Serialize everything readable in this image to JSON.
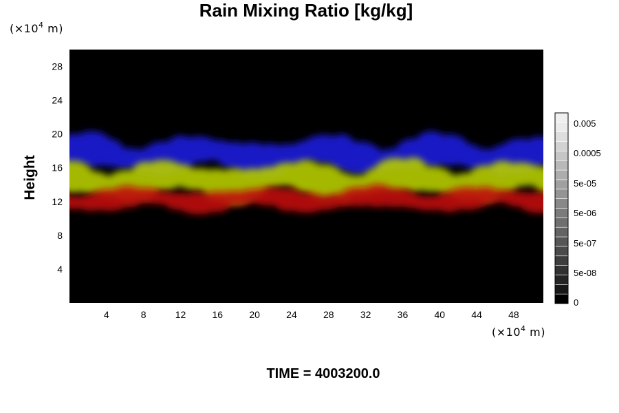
{
  "chart_data": {
    "type": "heatmap",
    "title": "Rain Mixing Ratio [kg/kg]",
    "ylabel": "Height",
    "x_unit": {
      "prefix": "(×10",
      "exp": "4",
      "suffix": " m)"
    },
    "y_unit": {
      "prefix": "(×10",
      "exp": "4",
      "suffix": " m)"
    },
    "xlim": [
      0,
      51.2
    ],
    "ylim": [
      0,
      30
    ],
    "xticks": [
      4,
      8,
      12,
      16,
      20,
      24,
      28,
      32,
      36,
      40,
      44,
      48
    ],
    "yticks": [
      4,
      8,
      12,
      16,
      20,
      24,
      28
    ],
    "colorbar": {
      "levels": 20,
      "labels": [
        "0",
        "5e-08",
        "5e-07",
        "5e-06",
        "5e-05",
        "0.0005",
        "0.005"
      ],
      "colors": [
        "#000000",
        "#ffffff"
      ]
    },
    "layers": [
      {
        "color": "#1a1adc",
        "y_range": [
          15.5,
          19.5
        ]
      },
      {
        "color": "#b6cc00",
        "y_range": [
          12.5,
          16.5
        ]
      },
      {
        "color": "#c01010",
        "y_range": [
          11,
          13.5
        ]
      }
    ],
    "annotation": "TIME = 4003200.0"
  }
}
